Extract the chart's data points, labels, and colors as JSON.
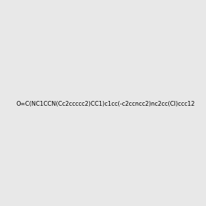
{
  "smiles": "O=C(NC1CCN(Cc2ccccc2)CC1)c1cc(-c2ccncc2)nc2cc(Cl)ccc12",
  "image_size": 300,
  "background_color": "#e8e8e8"
}
